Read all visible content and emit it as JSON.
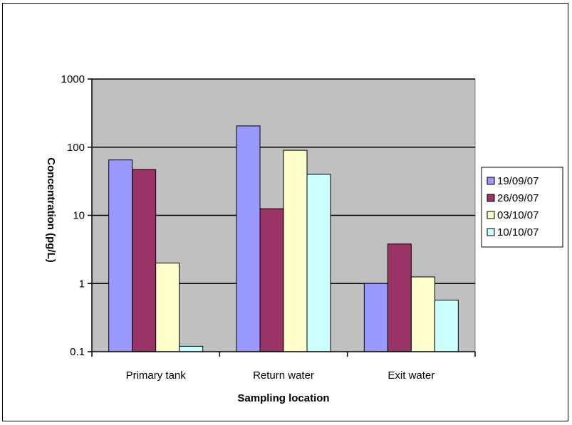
{
  "chart_data": {
    "type": "bar",
    "title": "",
    "xlabel": "Sampling location",
    "ylabel": "Concentration (pg/L)",
    "y_scale": "log",
    "ylim": [
      0.1,
      1000
    ],
    "y_ticks": [
      "0.1",
      "1",
      "10",
      "100",
      "1000"
    ],
    "categories": [
      "Primary tank",
      "Return water",
      "Exit water"
    ],
    "series": [
      {
        "name": "19/09/07",
        "color": "#9999ff",
        "values": [
          65,
          205,
          1.0
        ]
      },
      {
        "name": "26/09/07",
        "color": "#993366",
        "values": [
          47,
          12.5,
          3.8
        ]
      },
      {
        "name": "03/10/07",
        "color": "#ffffcc",
        "values": [
          2.0,
          90,
          1.25
        ]
      },
      {
        "name": "10/10/07",
        "color": "#ccffff",
        "values": [
          0.12,
          40,
          0.57
        ]
      }
    ],
    "grid": true,
    "plot_background": "#c0c0c0",
    "legend_position": "right"
  }
}
